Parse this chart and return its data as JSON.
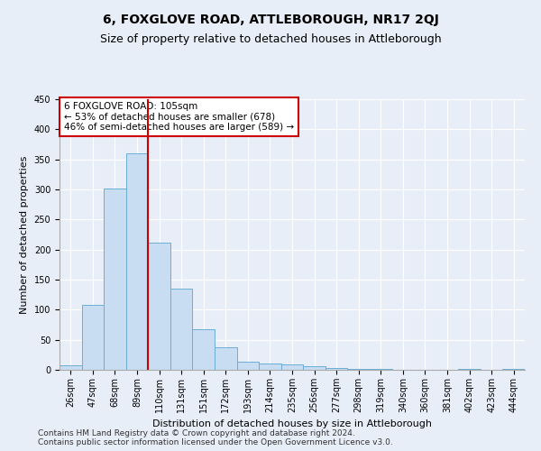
{
  "title": "6, FOXGLOVE ROAD, ATTLEBOROUGH, NR17 2QJ",
  "subtitle": "Size of property relative to detached houses in Attleborough",
  "xlabel": "Distribution of detached houses by size in Attleborough",
  "ylabel": "Number of detached properties",
  "categories": [
    "26sqm",
    "47sqm",
    "68sqm",
    "89sqm",
    "110sqm",
    "131sqm",
    "151sqm",
    "172sqm",
    "193sqm",
    "214sqm",
    "235sqm",
    "256sqm",
    "277sqm",
    "298sqm",
    "319sqm",
    "340sqm",
    "360sqm",
    "381sqm",
    "402sqm",
    "423sqm",
    "444sqm"
  ],
  "values": [
    8,
    108,
    302,
    360,
    212,
    135,
    68,
    37,
    13,
    10,
    9,
    6,
    3,
    2,
    1,
    0,
    0,
    0,
    2,
    0,
    1
  ],
  "bar_color": "#c8ddf2",
  "bar_edge_color": "#6aaed6",
  "vline_color": "#cc0000",
  "annotation_text": "6 FOXGLOVE ROAD: 105sqm\n← 53% of detached houses are smaller (678)\n46% of semi-detached houses are larger (589) →",
  "annotation_box_color": "#ffffff",
  "annotation_box_edge": "#cc0000",
  "ylim": [
    0,
    450
  ],
  "yticks": [
    0,
    50,
    100,
    150,
    200,
    250,
    300,
    350,
    400,
    450
  ],
  "footer": "Contains HM Land Registry data © Crown copyright and database right 2024.\nContains public sector information licensed under the Open Government Licence v3.0.",
  "background_color": "#e8eef7",
  "grid_color": "#ffffff",
  "title_fontsize": 10,
  "subtitle_fontsize": 9,
  "axis_label_fontsize": 8,
  "tick_fontsize": 7,
  "annotation_fontsize": 7.5,
  "footer_fontsize": 6.5
}
